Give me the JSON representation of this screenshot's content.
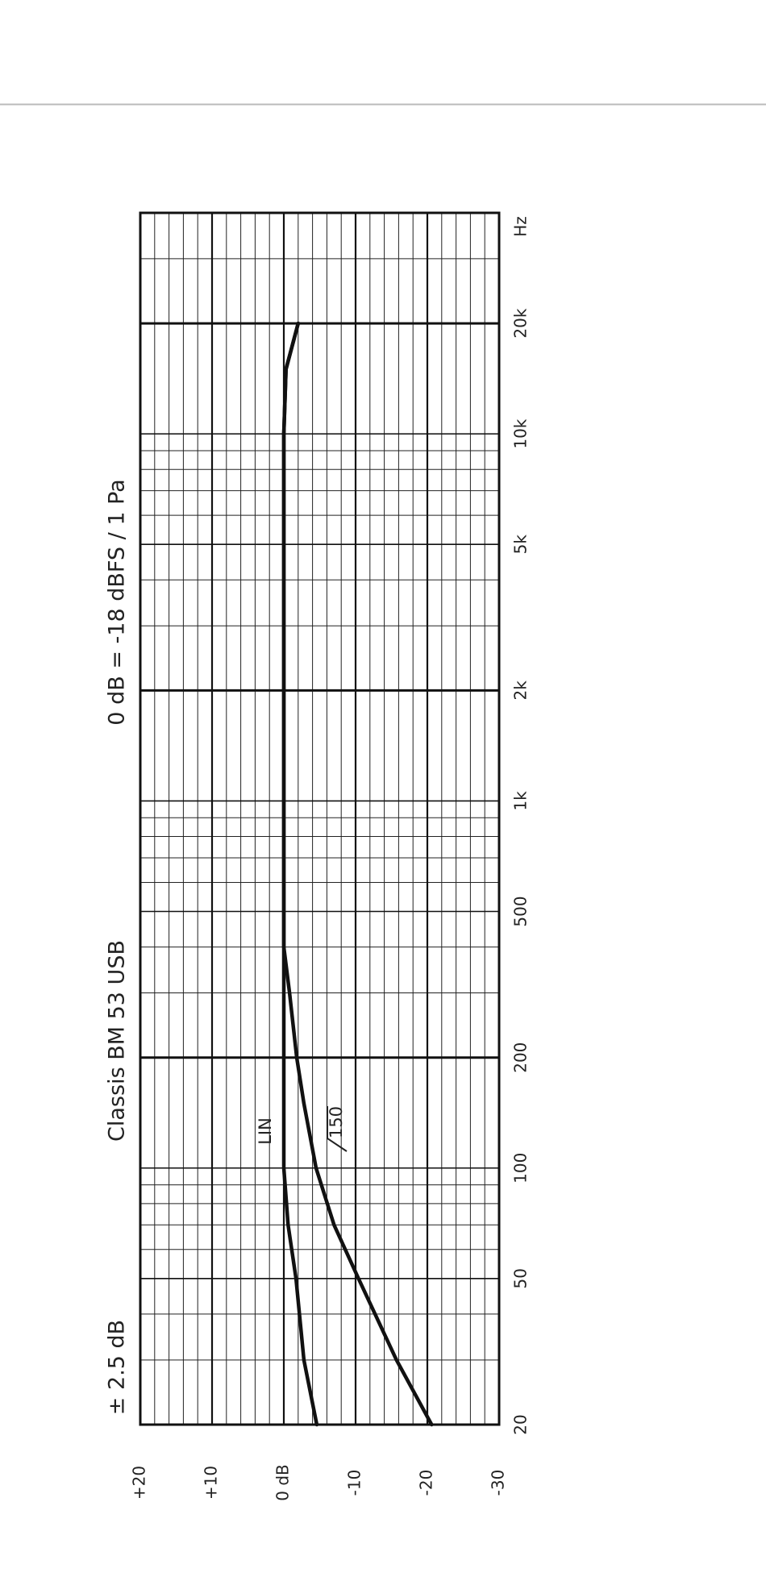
{
  "chart_data": {
    "type": "line",
    "title": "Classis BM 53 USB",
    "subtitle": "0 dB = -18 dBFS / 1 Pa",
    "tolerance": "± 2.5 dB",
    "x_unit": "Hz",
    "log_x": true,
    "grid": true,
    "x": [
      20,
      30,
      50,
      70,
      100,
      150,
      200,
      300,
      400,
      1000,
      5000,
      10000,
      15000,
      20000
    ],
    "series": [
      {
        "name": "LIN",
        "color": "#111111",
        "values": [
          -4.6,
          -2.8,
          -1.7,
          -0.6,
          0,
          0,
          0,
          0,
          0,
          0,
          0,
          0,
          -0.3,
          -2
        ]
      },
      {
        "name": "150",
        "color": "#111111",
        "values": [
          -20.6,
          -15.7,
          -10.4,
          -7,
          -4.5,
          -2.8,
          -1.8,
          -0.8,
          0,
          0,
          0,
          0,
          -0.3,
          -2
        ]
      }
    ],
    "xlim": [
      20,
      40000
    ],
    "xticks": [
      20,
      50,
      100,
      200,
      500,
      {
        "value": 1000,
        "label": "1k"
      },
      {
        "value": 2000,
        "label": "2k"
      },
      {
        "value": 5000,
        "label": "5k"
      },
      {
        "value": 10000,
        "label": "10k"
      },
      {
        "value": 20000,
        "label": "20k"
      }
    ],
    "ylim": [
      -30,
      20
    ],
    "yticks": [
      {
        "value": 20,
        "label": "+20"
      },
      {
        "value": 10,
        "label": "+10"
      },
      {
        "value": 0,
        "label": "0 dB"
      },
      -10,
      -20,
      -30
    ]
  }
}
